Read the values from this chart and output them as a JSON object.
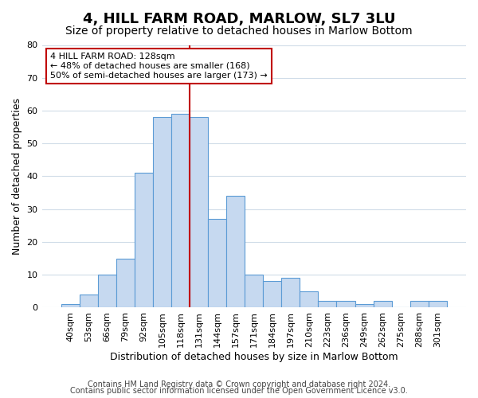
{
  "title": "4, HILL FARM ROAD, MARLOW, SL7 3LU",
  "subtitle": "Size of property relative to detached houses in Marlow Bottom",
  "xlabel": "Distribution of detached houses by size in Marlow Bottom",
  "ylabel": "Number of detached properties",
  "bar_labels": [
    "40sqm",
    "53sqm",
    "66sqm",
    "79sqm",
    "92sqm",
    "105sqm",
    "118sqm",
    "131sqm",
    "144sqm",
    "157sqm",
    "171sqm",
    "184sqm",
    "197sqm",
    "210sqm",
    "223sqm",
    "236sqm",
    "249sqm",
    "262sqm",
    "275sqm",
    "288sqm",
    "301sqm"
  ],
  "bar_values": [
    1,
    4,
    10,
    15,
    41,
    58,
    59,
    58,
    27,
    34,
    10,
    8,
    9,
    5,
    2,
    2,
    1,
    2,
    0,
    2,
    2
  ],
  "bar_color": "#c6d9f0",
  "bar_edge_color": "#5b9bd5",
  "vline_x_index": 7,
  "vline_color": "#c00000",
  "annotation_title": "4 HILL FARM ROAD: 128sqm",
  "annotation_line1": "← 48% of detached houses are smaller (168)",
  "annotation_line2": "50% of semi-detached houses are larger (173) →",
  "annotation_box_color": "#ffffff",
  "annotation_box_edge": "#c00000",
  "ylim": [
    0,
    80
  ],
  "yticks": [
    0,
    10,
    20,
    30,
    40,
    50,
    60,
    70,
    80
  ],
  "footer1": "Contains HM Land Registry data © Crown copyright and database right 2024.",
  "footer2": "Contains public sector information licensed under the Open Government Licence v3.0.",
  "bg_color": "#ffffff",
  "grid_color": "#d0dce8",
  "title_fontsize": 13,
  "subtitle_fontsize": 10,
  "axis_label_fontsize": 9,
  "tick_fontsize": 8,
  "footer_fontsize": 7
}
